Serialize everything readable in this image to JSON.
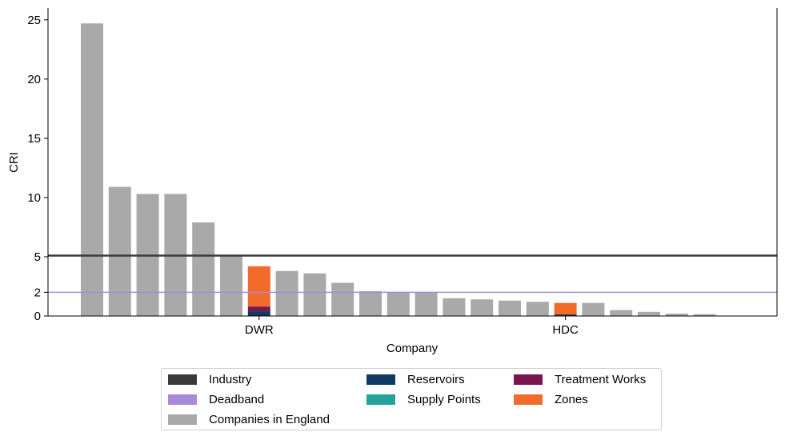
{
  "chart_data": {
    "type": "bar",
    "xlabel": "Company",
    "ylabel": "CRI",
    "ylim": [
      0,
      26
    ],
    "yticks": [
      0,
      2,
      5,
      10,
      15,
      20,
      25
    ],
    "categories": [
      "",
      "",
      "",
      "",
      "",
      "",
      "DWR",
      "",
      "",
      "",
      "",
      "",
      "",
      "",
      "",
      "",
      "",
      "HDC",
      "",
      "",
      "",
      "",
      ""
    ],
    "companies_in_england": [
      24.7,
      10.9,
      10.3,
      10.3,
      7.9,
      5.1,
      0,
      3.8,
      3.6,
      2.8,
      2.1,
      2.0,
      2.0,
      1.5,
      1.4,
      1.3,
      1.2,
      0,
      1.1,
      0.5,
      0.35,
      0.2,
      0.15
    ],
    "stacked_series": [
      {
        "name": "Industry",
        "values": {
          "DWR": 0.0,
          "HDC": 0.15
        }
      },
      {
        "name": "Reservoirs",
        "values": {
          "DWR": 0.4,
          "HDC": 0.0
        }
      },
      {
        "name": "Supply Points",
        "values": {
          "DWR": 0.0,
          "HDC": 0.0
        }
      },
      {
        "name": "Treatment Works",
        "values": {
          "DWR": 0.4,
          "HDC": 0.0
        }
      },
      {
        "name": "Zones",
        "values": {
          "DWR": 3.4,
          "HDC": 0.95
        }
      }
    ],
    "reference_lines": [
      {
        "name": "Industry",
        "y": 5.1
      },
      {
        "name": "Deadband",
        "y": 2.0
      }
    ],
    "legend_position": "bottom-center",
    "grid": false
  },
  "legend": {
    "items": [
      {
        "label": "Industry",
        "color": "#3a3a3a"
      },
      {
        "label": "Reservoirs",
        "color": "#0f3b63"
      },
      {
        "label": "Treatment Works",
        "color": "#7b1550"
      },
      {
        "label": "Deadband",
        "color": "#a68bd9"
      },
      {
        "label": "Supply Points",
        "color": "#24a39a"
      },
      {
        "label": "Zones",
        "color": "#f26b2a"
      },
      {
        "label": "Companies in England",
        "color": "#a9a9a9"
      }
    ]
  },
  "colors": {
    "companies": "#a9a9a9",
    "industry_line": "#3a3a3a",
    "deadband_line": "#a68bd9"
  }
}
